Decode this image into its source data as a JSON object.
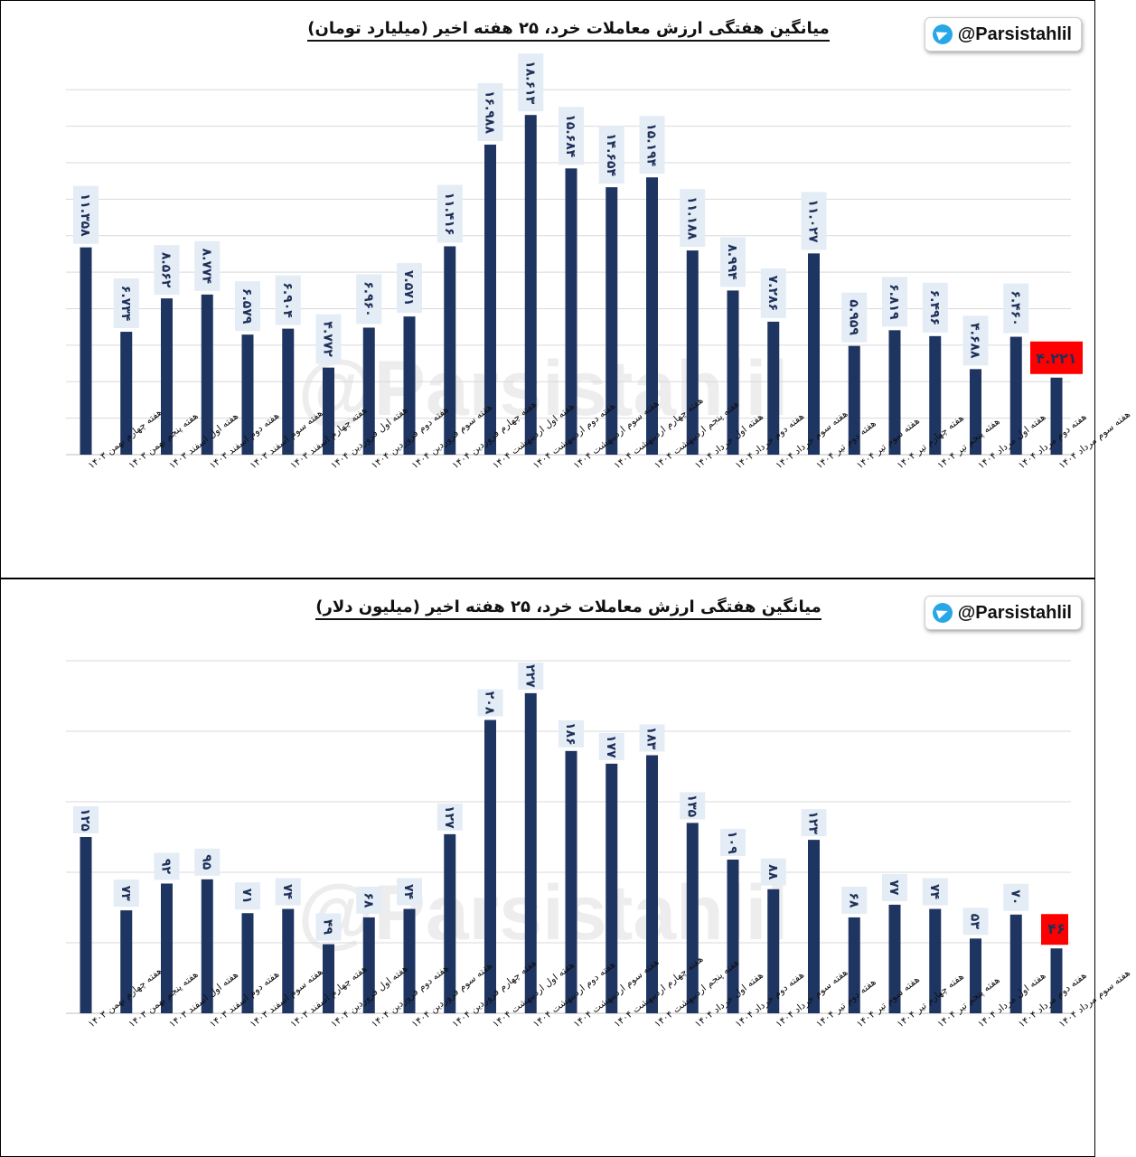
{
  "colors": {
    "bar": "#1e3461",
    "highlight": "#ff0000",
    "label_bg": "#e4ecf6",
    "grid": "#d9d9d9",
    "telegram": "#27a7e7"
  },
  "channel": {
    "handle": "@Parsistahlil",
    "icon": "telegram-icon"
  },
  "watermark": "@Parsistahlil",
  "chart_data": [
    {
      "type": "bar",
      "title": "میانگین هفتگی ارزش معاملات خرد، ۲۵ هفته اخیر (میلیارد تومان)",
      "categories": [
        "هفته چهارم بهمن ۱۴۰۳",
        "هفته پنجم بهمن ۱۴۰۳",
        "هفته اول اسفند ۱۴۰۳",
        "هفته دوم اسفند ۱۴۰۳",
        "هفته سوم اسفند ۱۴۰۳",
        "هفته چهارم اسفند ۱۴۰۳",
        "هفته اول فروردین ۱۴۰۴",
        "هفته دوم فروردین ۱۴۰۴",
        "هفته سوم فروردین ۱۴۰۴",
        "هفته چهارم فروردین ۱۴۰۴",
        "هفته اول اردیبهشت ۱۴۰۴",
        "هفته دوم اردیبهشت ۱۴۰۴",
        "هفته سوم اردیبهشت ۱۴۰۴",
        "هفته چهارم اردیبهشت ۱۴۰۴",
        "هفته پنجم اردیبهشت ۱۴۰۴",
        "هفته اول خرداد ۱۴۰۴",
        "هفته دوم خرداد ۱۴۰۴",
        "هفته سوم خرداد ۱۴۰۴",
        "هفته دوم تیر ۱۴۰۴",
        "هفته سوم تیر ۱۴۰۴",
        "هفته چهارم تیر ۱۴۰۴",
        "هفته پنجم تیر ۱۴۰۴",
        "هفته اول مرداد ۱۴۰۴",
        "هفته دوم مرداد ۱۴۰۴",
        "هفته سوم مرداد ۱۴۰۴"
      ],
      "values": [
        11.358,
        6.734,
        8.562,
        8.774,
        6.579,
        6.904,
        4.772,
        6.96,
        7.571,
        11.416,
        16.988,
        18.613,
        15.684,
        14.654,
        15.194,
        11.188,
        8.994,
        7.286,
        11.027,
        5.959,
        6.819,
        6.496,
        4.688,
        6.46,
        4.221
      ],
      "value_labels": [
        "۱۱.۳۵۸",
        "۶.۷۳۴",
        "۸.۵۶۲",
        "۸.۷۷۴",
        "۶.۵۷۹",
        "۶.۹۰۴",
        "۴.۷۷۲",
        "۶.۹۶۰",
        "۷.۵۷۱",
        "۱۱.۴۱۶",
        "۱۶.۹۸۸",
        "۱۸.۶۱۳",
        "۱۵.۶۸۴",
        "۱۴.۶۵۴",
        "۱۵.۱۹۴",
        "۱۱.۱۸۸",
        "۸.۹۹۴",
        "۷.۲۸۶",
        "۱۱.۰۲۷",
        "۵.۹۵۹",
        "۶.۸۱۹",
        "۶.۴۹۶",
        "۴.۶۸۸",
        "۶.۴۶۰",
        "۴.۲۲۱"
      ],
      "highlight_index": 24,
      "ylim": [
        0,
        21
      ],
      "grid_step": 2,
      "grid": true,
      "xlabel": "",
      "ylabel": ""
    },
    {
      "type": "bar",
      "title": "میانگین هفتگی ارزش معاملات خرد، ۲۵ هفته اخیر (میلیون دلار)",
      "categories": [
        "هفته چهارم بهمن ۱۴۰۳",
        "هفته پنجم بهمن ۱۴۰۳",
        "هفته اول اسفند ۱۴۰۳",
        "هفته دوم اسفند ۱۴۰۳",
        "هفته سوم اسفند ۱۴۰۳",
        "هفته چهارم اسفند ۱۴۰۳",
        "هفته اول فروردین ۱۴۰۴",
        "هفته دوم فروردین ۱۴۰۴",
        "هفته سوم فروردین ۱۴۰۴",
        "هفته چهارم فروردین ۱۴۰۴",
        "هفته اول اردیبهشت ۱۴۰۴",
        "هفته دوم اردیبهشت ۱۴۰۴",
        "هفته سوم اردیبهشت ۱۴۰۴",
        "هفته چهارم اردیبهشت ۱۴۰۴",
        "هفته پنجم اردیبهشت ۱۴۰۴",
        "هفته اول خرداد ۱۴۰۴",
        "هفته دوم خرداد ۱۴۰۴",
        "هفته سوم خرداد ۱۴۰۴",
        "هفته دوم تیر ۱۴۰۴",
        "هفته سوم تیر ۱۴۰۴",
        "هفته چهارم تیر ۱۴۰۴",
        "هفته پنجم تیر ۱۴۰۴",
        "هفته اول مرداد ۱۴۰۴",
        "هفته دوم مرداد ۱۴۰۴",
        "هفته سوم مرداد ۱۴۰۴"
      ],
      "values": [
        125,
        73,
        92,
        95,
        71,
        74,
        49,
        68,
        74,
        127,
        208,
        227,
        186,
        177,
        183,
        135,
        109,
        88,
        123,
        68,
        77,
        74,
        53,
        70,
        46
      ],
      "value_labels": [
        "۱۲۵",
        "۷۳",
        "۹۲",
        "۹۵",
        "۷۱",
        "۷۴",
        "۴۹",
        "۶۸",
        "۷۴",
        "۱۲۷",
        "۲۰۸",
        "۲۲۷",
        "۱۸۶",
        "۱۷۷",
        "۱۸۳",
        "۱۳۵",
        "۱۰۹",
        "۸۸",
        "۱۲۳",
        "۶۸",
        "۷۷",
        "۷۴",
        "۵۳",
        "۷۰",
        "۴۶"
      ],
      "highlight_index": 24,
      "ylim": [
        0,
        250
      ],
      "grid_step": 50,
      "grid": true,
      "xlabel": "",
      "ylabel": ""
    }
  ]
}
